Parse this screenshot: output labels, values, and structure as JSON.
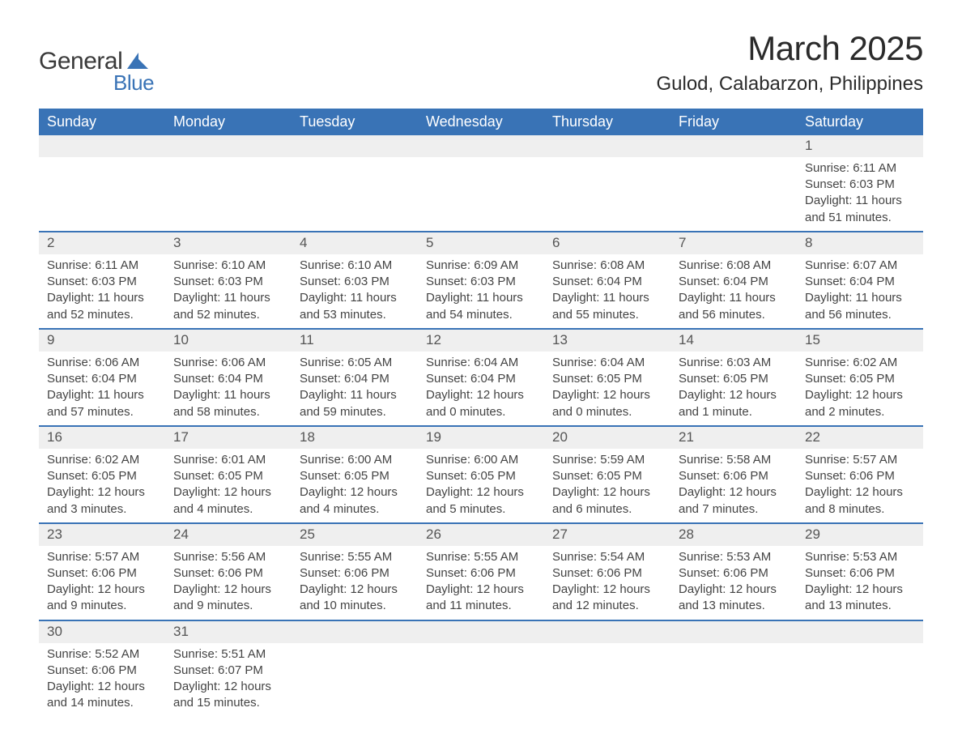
{
  "logo": {
    "word1": "General",
    "word2": "Blue",
    "text_color": "#3a3a3a",
    "accent_color": "#3973b6"
  },
  "title": "March 2025",
  "location": "Gulod, Calabarzon, Philippines",
  "colors": {
    "header_bg": "#3973b6",
    "header_text": "#ffffff",
    "daynum_bg": "#efefef",
    "row_border": "#3973b6",
    "body_text": "#444444",
    "page_bg": "#ffffff"
  },
  "typography": {
    "title_fontsize": 42,
    "location_fontsize": 24,
    "dayheader_fontsize": 18,
    "daynum_fontsize": 17,
    "cell_fontsize": 15
  },
  "layout": {
    "columns": 7,
    "column_width_pct": 14.28
  },
  "day_headers": [
    "Sunday",
    "Monday",
    "Tuesday",
    "Wednesday",
    "Thursday",
    "Friday",
    "Saturday"
  ],
  "weeks": [
    [
      null,
      null,
      null,
      null,
      null,
      null,
      {
        "n": "1",
        "sr": "Sunrise: 6:11 AM",
        "ss": "Sunset: 6:03 PM",
        "d1": "Daylight: 11 hours",
        "d2": "and 51 minutes."
      }
    ],
    [
      {
        "n": "2",
        "sr": "Sunrise: 6:11 AM",
        "ss": "Sunset: 6:03 PM",
        "d1": "Daylight: 11 hours",
        "d2": "and 52 minutes."
      },
      {
        "n": "3",
        "sr": "Sunrise: 6:10 AM",
        "ss": "Sunset: 6:03 PM",
        "d1": "Daylight: 11 hours",
        "d2": "and 52 minutes."
      },
      {
        "n": "4",
        "sr": "Sunrise: 6:10 AM",
        "ss": "Sunset: 6:03 PM",
        "d1": "Daylight: 11 hours",
        "d2": "and 53 minutes."
      },
      {
        "n": "5",
        "sr": "Sunrise: 6:09 AM",
        "ss": "Sunset: 6:03 PM",
        "d1": "Daylight: 11 hours",
        "d2": "and 54 minutes."
      },
      {
        "n": "6",
        "sr": "Sunrise: 6:08 AM",
        "ss": "Sunset: 6:04 PM",
        "d1": "Daylight: 11 hours",
        "d2": "and 55 minutes."
      },
      {
        "n": "7",
        "sr": "Sunrise: 6:08 AM",
        "ss": "Sunset: 6:04 PM",
        "d1": "Daylight: 11 hours",
        "d2": "and 56 minutes."
      },
      {
        "n": "8",
        "sr": "Sunrise: 6:07 AM",
        "ss": "Sunset: 6:04 PM",
        "d1": "Daylight: 11 hours",
        "d2": "and 56 minutes."
      }
    ],
    [
      {
        "n": "9",
        "sr": "Sunrise: 6:06 AM",
        "ss": "Sunset: 6:04 PM",
        "d1": "Daylight: 11 hours",
        "d2": "and 57 minutes."
      },
      {
        "n": "10",
        "sr": "Sunrise: 6:06 AM",
        "ss": "Sunset: 6:04 PM",
        "d1": "Daylight: 11 hours",
        "d2": "and 58 minutes."
      },
      {
        "n": "11",
        "sr": "Sunrise: 6:05 AM",
        "ss": "Sunset: 6:04 PM",
        "d1": "Daylight: 11 hours",
        "d2": "and 59 minutes."
      },
      {
        "n": "12",
        "sr": "Sunrise: 6:04 AM",
        "ss": "Sunset: 6:04 PM",
        "d1": "Daylight: 12 hours",
        "d2": "and 0 minutes."
      },
      {
        "n": "13",
        "sr": "Sunrise: 6:04 AM",
        "ss": "Sunset: 6:05 PM",
        "d1": "Daylight: 12 hours",
        "d2": "and 0 minutes."
      },
      {
        "n": "14",
        "sr": "Sunrise: 6:03 AM",
        "ss": "Sunset: 6:05 PM",
        "d1": "Daylight: 12 hours",
        "d2": "and 1 minute."
      },
      {
        "n": "15",
        "sr": "Sunrise: 6:02 AM",
        "ss": "Sunset: 6:05 PM",
        "d1": "Daylight: 12 hours",
        "d2": "and 2 minutes."
      }
    ],
    [
      {
        "n": "16",
        "sr": "Sunrise: 6:02 AM",
        "ss": "Sunset: 6:05 PM",
        "d1": "Daylight: 12 hours",
        "d2": "and 3 minutes."
      },
      {
        "n": "17",
        "sr": "Sunrise: 6:01 AM",
        "ss": "Sunset: 6:05 PM",
        "d1": "Daylight: 12 hours",
        "d2": "and 4 minutes."
      },
      {
        "n": "18",
        "sr": "Sunrise: 6:00 AM",
        "ss": "Sunset: 6:05 PM",
        "d1": "Daylight: 12 hours",
        "d2": "and 4 minutes."
      },
      {
        "n": "19",
        "sr": "Sunrise: 6:00 AM",
        "ss": "Sunset: 6:05 PM",
        "d1": "Daylight: 12 hours",
        "d2": "and 5 minutes."
      },
      {
        "n": "20",
        "sr": "Sunrise: 5:59 AM",
        "ss": "Sunset: 6:05 PM",
        "d1": "Daylight: 12 hours",
        "d2": "and 6 minutes."
      },
      {
        "n": "21",
        "sr": "Sunrise: 5:58 AM",
        "ss": "Sunset: 6:06 PM",
        "d1": "Daylight: 12 hours",
        "d2": "and 7 minutes."
      },
      {
        "n": "22",
        "sr": "Sunrise: 5:57 AM",
        "ss": "Sunset: 6:06 PM",
        "d1": "Daylight: 12 hours",
        "d2": "and 8 minutes."
      }
    ],
    [
      {
        "n": "23",
        "sr": "Sunrise: 5:57 AM",
        "ss": "Sunset: 6:06 PM",
        "d1": "Daylight: 12 hours",
        "d2": "and 9 minutes."
      },
      {
        "n": "24",
        "sr": "Sunrise: 5:56 AM",
        "ss": "Sunset: 6:06 PM",
        "d1": "Daylight: 12 hours",
        "d2": "and 9 minutes."
      },
      {
        "n": "25",
        "sr": "Sunrise: 5:55 AM",
        "ss": "Sunset: 6:06 PM",
        "d1": "Daylight: 12 hours",
        "d2": "and 10 minutes."
      },
      {
        "n": "26",
        "sr": "Sunrise: 5:55 AM",
        "ss": "Sunset: 6:06 PM",
        "d1": "Daylight: 12 hours",
        "d2": "and 11 minutes."
      },
      {
        "n": "27",
        "sr": "Sunrise: 5:54 AM",
        "ss": "Sunset: 6:06 PM",
        "d1": "Daylight: 12 hours",
        "d2": "and 12 minutes."
      },
      {
        "n": "28",
        "sr": "Sunrise: 5:53 AM",
        "ss": "Sunset: 6:06 PM",
        "d1": "Daylight: 12 hours",
        "d2": "and 13 minutes."
      },
      {
        "n": "29",
        "sr": "Sunrise: 5:53 AM",
        "ss": "Sunset: 6:06 PM",
        "d1": "Daylight: 12 hours",
        "d2": "and 13 minutes."
      }
    ],
    [
      {
        "n": "30",
        "sr": "Sunrise: 5:52 AM",
        "ss": "Sunset: 6:06 PM",
        "d1": "Daylight: 12 hours",
        "d2": "and 14 minutes."
      },
      {
        "n": "31",
        "sr": "Sunrise: 5:51 AM",
        "ss": "Sunset: 6:07 PM",
        "d1": "Daylight: 12 hours",
        "d2": "and 15 minutes."
      },
      null,
      null,
      null,
      null,
      null
    ]
  ]
}
